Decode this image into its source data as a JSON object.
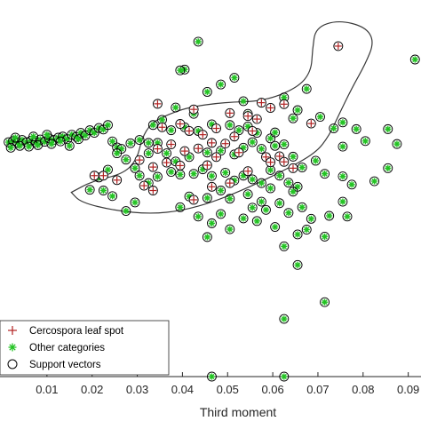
{
  "chart_data": {
    "type": "scatter",
    "title": "",
    "xlabel": "Third moment",
    "ylabel": "",
    "xlim": [
      0.0,
      0.092
    ],
    "ylim": [
      0.0,
      1.0
    ],
    "xticks": [
      0.01,
      0.02,
      0.03,
      0.04,
      0.05,
      0.06,
      0.07,
      0.08,
      0.09
    ],
    "xtick_labels": [
      "0.01",
      "0.02",
      "0.03",
      "0.04",
      "0.05",
      "0.06",
      "0.07",
      "0.08",
      "0.09"
    ],
    "grid": false,
    "legend_position": "bottom-left",
    "legend": [
      {
        "label": "Cercospora leaf spot",
        "marker": "plus",
        "color": "#b22222"
      },
      {
        "label": "Other categories",
        "marker": "asterisk",
        "color": "#22c322"
      },
      {
        "label": "Support vectors",
        "marker": "circle",
        "color": "#000000"
      }
    ],
    "decision_boundary": [
      [
        0.0154,
        0.495
      ],
      [
        0.0175,
        0.468
      ],
      [
        0.025,
        0.446
      ],
      [
        0.033,
        0.437
      ],
      [
        0.04,
        0.446
      ],
      [
        0.047,
        0.47
      ],
      [
        0.055,
        0.51
      ],
      [
        0.062,
        0.551
      ],
      [
        0.0695,
        0.6
      ],
      [
        0.0725,
        0.648
      ],
      [
        0.0745,
        0.7
      ],
      [
        0.0775,
        0.775
      ],
      [
        0.0805,
        0.84
      ],
      [
        0.0825,
        0.9
      ],
      [
        0.0805,
        0.94
      ],
      [
        0.0745,
        0.958
      ],
      [
        0.0695,
        0.938
      ],
      [
        0.0688,
        0.88
      ],
      [
        0.0685,
        0.82
      ],
      [
        0.0655,
        0.776
      ],
      [
        0.058,
        0.74
      ],
      [
        0.049,
        0.737
      ],
      [
        0.041,
        0.723
      ],
      [
        0.036,
        0.7
      ],
      [
        0.033,
        0.68
      ],
      [
        0.031,
        0.64
      ],
      [
        0.03,
        0.585
      ],
      [
        0.027,
        0.545
      ],
      [
        0.02,
        0.525
      ],
      [
        0.0154,
        0.495
      ]
    ],
    "series": [
      {
        "name": "Other categories",
        "color": "#22c322",
        "points": [
          [
            0.0015,
            0.63
          ],
          [
            0.0025,
            0.633
          ],
          [
            0.0035,
            0.628
          ],
          [
            0.0045,
            0.636
          ],
          [
            0.0055,
            0.63
          ],
          [
            0.0065,
            0.634
          ],
          [
            0.0075,
            0.629
          ],
          [
            0.0085,
            0.637
          ],
          [
            0.0095,
            0.631
          ],
          [
            0.0105,
            0.64
          ],
          [
            0.0115,
            0.636
          ],
          [
            0.0125,
            0.642
          ],
          [
            0.0135,
            0.645
          ],
          [
            0.0145,
            0.638
          ],
          [
            0.0155,
            0.65
          ],
          [
            0.0165,
            0.644
          ],
          [
            0.0175,
            0.655
          ],
          [
            0.0185,
            0.648
          ],
          [
            0.0195,
            0.662
          ],
          [
            0.0205,
            0.655
          ],
          [
            0.0215,
            0.668
          ],
          [
            0.0225,
            0.664
          ],
          [
            0.0235,
            0.676
          ],
          [
            0.0245,
            0.632
          ],
          [
            0.0255,
            0.616
          ],
          [
            0.0265,
            0.612
          ],
          [
            0.0285,
            0.627
          ],
          [
            0.0305,
            0.636
          ],
          [
            0.0325,
            0.628
          ],
          [
            0.002,
            0.615
          ],
          [
            0.004,
            0.62
          ],
          [
            0.006,
            0.618
          ],
          [
            0.008,
            0.622
          ],
          [
            0.011,
            0.625
          ],
          [
            0.013,
            0.632
          ],
          [
            0.015,
            0.62
          ],
          [
            0.017,
            0.638
          ],
          [
            0.003,
            0.642
          ],
          [
            0.007,
            0.645
          ],
          [
            0.01,
            0.65
          ],
          [
            0.0435,
            0.9
          ],
          [
            0.0405,
            0.825
          ],
          [
            0.0395,
            0.823
          ],
          [
            0.0485,
            0.785
          ],
          [
            0.0515,
            0.803
          ],
          [
            0.0455,
            0.765
          ],
          [
            0.0535,
            0.74
          ],
          [
            0.0385,
            0.723
          ],
          [
            0.0425,
            0.706
          ],
          [
            0.0545,
            0.706
          ],
          [
            0.0645,
            0.694
          ],
          [
            0.0705,
            0.698
          ],
          [
            0.0675,
            0.773
          ],
          [
            0.0625,
            0.75
          ],
          [
            0.0655,
            0.716
          ],
          [
            0.0755,
            0.683
          ],
          [
            0.0735,
            0.667
          ],
          [
            0.0785,
            0.665
          ],
          [
            0.0755,
            0.618
          ],
          [
            0.0805,
            0.633
          ],
          [
            0.0855,
            0.665
          ],
          [
            0.0875,
            0.625
          ],
          [
            0.0915,
            0.852
          ],
          [
            0.0335,
            0.676
          ],
          [
            0.0355,
            0.69
          ],
          [
            0.0375,
            0.662
          ],
          [
            0.0405,
            0.67
          ],
          [
            0.0435,
            0.66
          ],
          [
            0.0465,
            0.678
          ],
          [
            0.0505,
            0.676
          ],
          [
            0.0525,
            0.662
          ],
          [
            0.0545,
            0.672
          ],
          [
            0.0565,
            0.655
          ],
          [
            0.0595,
            0.64
          ],
          [
            0.0605,
            0.656
          ],
          [
            0.0325,
            0.6
          ],
          [
            0.0345,
            0.628
          ],
          [
            0.0365,
            0.6
          ],
          [
            0.0385,
            0.578
          ],
          [
            0.0415,
            0.59
          ],
          [
            0.0455,
            0.602
          ],
          [
            0.0485,
            0.607
          ],
          [
            0.0515,
            0.597
          ],
          [
            0.0535,
            0.615
          ],
          [
            0.0555,
            0.63
          ],
          [
            0.0575,
            0.612
          ],
          [
            0.0605,
            0.62
          ],
          [
            0.0625,
            0.624
          ],
          [
            0.0645,
            0.591
          ],
          [
            0.0665,
            0.562
          ],
          [
            0.0695,
            0.58
          ],
          [
            0.0275,
            0.583
          ],
          [
            0.0295,
            0.56
          ],
          [
            0.0255,
            0.6
          ],
          [
            0.0235,
            0.556
          ],
          [
            0.0215,
            0.535
          ],
          [
            0.0195,
            0.502
          ],
          [
            0.0225,
            0.5
          ],
          [
            0.0305,
            0.54
          ],
          [
            0.0325,
            0.52
          ],
          [
            0.0345,
            0.537
          ],
          [
            0.0375,
            0.55
          ],
          [
            0.0395,
            0.543
          ],
          [
            0.0425,
            0.545
          ],
          [
            0.0445,
            0.557
          ],
          [
            0.0465,
            0.539
          ],
          [
            0.0495,
            0.548
          ],
          [
            0.0515,
            0.527
          ],
          [
            0.0535,
            0.54
          ],
          [
            0.0555,
            0.53
          ],
          [
            0.0575,
            0.52
          ],
          [
            0.0595,
            0.555
          ],
          [
            0.0615,
            0.54
          ],
          [
            0.0635,
            0.521
          ],
          [
            0.0655,
            0.51
          ],
          [
            0.0715,
            0.545
          ],
          [
            0.0755,
            0.538
          ],
          [
            0.0775,
            0.516
          ],
          [
            0.0825,
            0.525
          ],
          [
            0.0855,
            0.56
          ],
          [
            0.0415,
            0.484
          ],
          [
            0.0455,
            0.48
          ],
          [
            0.0485,
            0.5
          ],
          [
            0.0505,
            0.478
          ],
          [
            0.0545,
            0.49
          ],
          [
            0.0575,
            0.47
          ],
          [
            0.0615,
            0.466
          ],
          [
            0.0645,
            0.497
          ],
          [
            0.0595,
            0.506
          ],
          [
            0.0555,
            0.454
          ],
          [
            0.0585,
            0.448
          ],
          [
            0.0635,
            0.44
          ],
          [
            0.0665,
            0.455
          ],
          [
            0.0685,
            0.424
          ],
          [
            0.0755,
            0.47
          ],
          [
            0.0725,
            0.432
          ],
          [
            0.0765,
            0.43
          ],
          [
            0.0485,
            0.437
          ],
          [
            0.0535,
            0.425
          ],
          [
            0.0565,
            0.418
          ],
          [
            0.0605,
            0.402
          ],
          [
            0.0655,
            0.382
          ],
          [
            0.0675,
            0.395
          ],
          [
            0.0715,
            0.376
          ],
          [
            0.0505,
            0.396
          ],
          [
            0.0465,
            0.412
          ],
          [
            0.0435,
            0.43
          ],
          [
            0.0455,
            0.375
          ],
          [
            0.0395,
            0.455
          ],
          [
            0.0295,
            0.468
          ],
          [
            0.0245,
            0.485
          ],
          [
            0.0275,
            0.445
          ],
          [
            0.0625,
            0.35
          ],
          [
            0.0655,
            0.3
          ],
          [
            0.0715,
            0.2
          ],
          [
            0.0625,
            0.155
          ],
          [
            0.0625,
            0.0
          ],
          [
            0.0465,
            0.0
          ]
        ]
      },
      {
        "name": "Cercospora leaf spot",
        "color": "#b22222",
        "points": [
          [
            0.0745,
            0.888
          ],
          [
            0.0345,
            0.733
          ],
          [
            0.0425,
            0.718
          ],
          [
            0.0575,
            0.736
          ],
          [
            0.0595,
            0.722
          ],
          [
            0.0625,
            0.732
          ],
          [
            0.0505,
            0.708
          ],
          [
            0.0545,
            0.7
          ],
          [
            0.0565,
            0.692
          ],
          [
            0.0355,
            0.67
          ],
          [
            0.0395,
            0.679
          ],
          [
            0.0415,
            0.66
          ],
          [
            0.0445,
            0.65
          ],
          [
            0.0475,
            0.667
          ],
          [
            0.0515,
            0.645
          ],
          [
            0.0555,
            0.66
          ],
          [
            0.0345,
            0.612
          ],
          [
            0.0375,
            0.624
          ],
          [
            0.0405,
            0.606
          ],
          [
            0.0435,
            0.613
          ],
          [
            0.0465,
            0.628
          ],
          [
            0.0495,
            0.626
          ],
          [
            0.0525,
            0.602
          ],
          [
            0.0585,
            0.59
          ],
          [
            0.0305,
            0.582
          ],
          [
            0.0335,
            0.563
          ],
          [
            0.0365,
            0.575
          ],
          [
            0.0395,
            0.567
          ],
          [
            0.0455,
            0.568
          ],
          [
            0.0475,
            0.59
          ],
          [
            0.0615,
            0.592
          ],
          [
            0.0645,
            0.56
          ],
          [
            0.0225,
            0.54
          ],
          [
            0.0255,
            0.528
          ],
          [
            0.0315,
            0.513
          ],
          [
            0.0335,
            0.5
          ],
          [
            0.0205,
            0.54
          ],
          [
            0.0465,
            0.51
          ],
          [
            0.0505,
            0.52
          ],
          [
            0.0545,
            0.552
          ],
          [
            0.0595,
            0.576
          ],
          [
            0.0625,
            0.577
          ],
          [
            0.0685,
            0.68
          ],
          [
            0.0425,
            0.475
          ]
        ]
      }
    ]
  }
}
